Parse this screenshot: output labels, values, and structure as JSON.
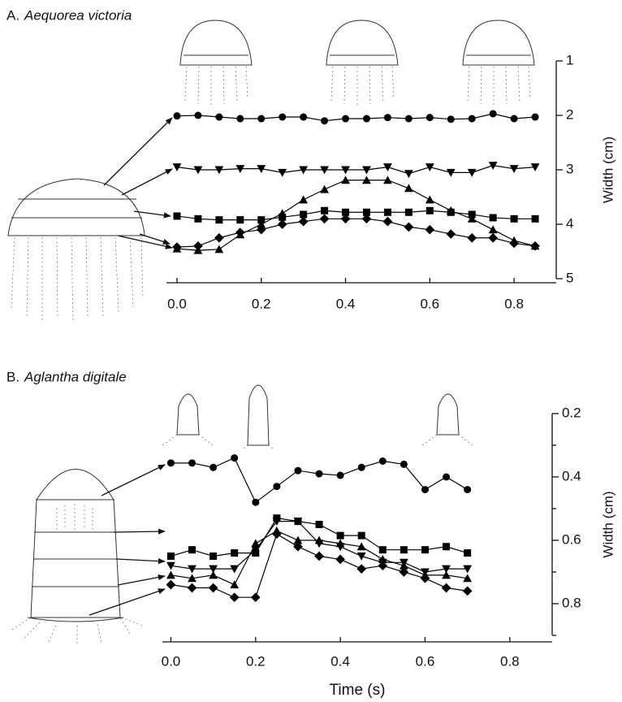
{
  "chart_data": [
    {
      "type": "line",
      "label": "A.",
      "title": "Aequorea victoria",
      "ylabel": "Width (cm)",
      "x": [
        0,
        0.05,
        0.1,
        0.15,
        0.2,
        0.25,
        0.3,
        0.35,
        0.4,
        0.45,
        0.5,
        0.55,
        0.6,
        0.65,
        0.7,
        0.75,
        0.8,
        0.85
      ],
      "xlim": [
        -0.025,
        0.9
      ],
      "xticks": [
        {
          "value": 0,
          "label": "0.0"
        },
        0.2,
        0.4,
        0.6,
        0.8
      ],
      "ylim": [
        1,
        5
      ],
      "yticks": [
        1,
        2,
        3,
        4,
        5
      ],
      "y_inverted": true,
      "series": [
        {
          "marker": "circle",
          "color": "#000000",
          "values": [
            2.01,
            2.0,
            2.03,
            2.06,
            2.06,
            2.03,
            2.03,
            2.1,
            2.06,
            2.06,
            2.04,
            2.06,
            2.04,
            2.07,
            2.06,
            1.97,
            2.06,
            2.03
          ]
        },
        {
          "marker": "triangle-down",
          "color": "#000000",
          "values": [
            2.95,
            3.0,
            3.0,
            2.98,
            2.98,
            3.05,
            3.0,
            3.0,
            3.0,
            3.0,
            2.95,
            3.07,
            2.95,
            3.05,
            3.05,
            2.92,
            2.98,
            2.95
          ]
        },
        {
          "marker": "square",
          "color": "#000000",
          "values": [
            3.85,
            3.9,
            3.92,
            3.92,
            3.92,
            3.87,
            3.82,
            3.75,
            3.78,
            3.78,
            3.78,
            3.78,
            3.75,
            3.78,
            3.82,
            3.88,
            3.9,
            3.9
          ]
        },
        {
          "marker": "triangle-up",
          "color": "#000000",
          "values": [
            4.45,
            4.48,
            4.46,
            4.19,
            4.0,
            3.8,
            3.55,
            3.36,
            3.19,
            3.19,
            3.19,
            3.34,
            3.55,
            3.75,
            3.9,
            4.1,
            4.3,
            4.4
          ]
        },
        {
          "marker": "diamond",
          "color": "#000000",
          "values": [
            4.42,
            4.4,
            4.25,
            4.15,
            4.1,
            4.0,
            3.95,
            3.9,
            3.9,
            3.9,
            3.95,
            4.05,
            4.1,
            4.18,
            4.25,
            4.25,
            4.35,
            4.4
          ]
        }
      ]
    },
    {
      "type": "line",
      "label": "B.",
      "title": "Aglantha digitale",
      "ylabel": "Width (cm)",
      "xlabel": "Time (s)",
      "x": [
        0,
        0.05,
        0.1,
        0.15,
        0.2,
        0.25,
        0.3,
        0.35,
        0.4,
        0.45,
        0.5,
        0.55,
        0.6,
        0.65,
        0.7
      ],
      "xlim": [
        -0.02,
        0.9
      ],
      "xticks": [
        {
          "value": 0,
          "label": "0.0"
        },
        0.2,
        0.4,
        0.6,
        0.8
      ],
      "ylim": [
        0.2,
        0.9
      ],
      "yticks": [
        0.2,
        0.4,
        0.6,
        0.8
      ],
      "yminorticks": [
        0.3,
        0.5,
        0.7,
        0.9
      ],
      "y_inverted": true,
      "series": [
        {
          "marker": "circle",
          "color": "#000000",
          "values": [
            0.356,
            0.356,
            0.37,
            0.34,
            0.48,
            0.43,
            0.38,
            0.39,
            0.395,
            0.37,
            0.35,
            0.36,
            0.44,
            0.4,
            0.44
          ]
        },
        {
          "marker": "square",
          "color": "#000000",
          "values": [
            0.65,
            0.63,
            0.65,
            0.64,
            0.64,
            0.53,
            0.54,
            0.55,
            0.585,
            0.585,
            0.63,
            0.63,
            0.63,
            0.62,
            0.64
          ]
        },
        {
          "marker": "triangle-down",
          "color": "#000000",
          "values": [
            0.68,
            0.69,
            0.69,
            0.69,
            0.63,
            0.54,
            0.54,
            0.61,
            0.62,
            0.65,
            0.67,
            0.67,
            0.7,
            0.69,
            0.69
          ]
        },
        {
          "marker": "triangle-up",
          "color": "#000000",
          "values": [
            0.71,
            0.72,
            0.71,
            0.74,
            0.61,
            0.57,
            0.6,
            0.6,
            0.61,
            0.62,
            0.66,
            0.68,
            0.71,
            0.71,
            0.72
          ]
        },
        {
          "marker": "diamond",
          "color": "#000000",
          "values": [
            0.74,
            0.75,
            0.75,
            0.78,
            0.78,
            0.58,
            0.62,
            0.65,
            0.66,
            0.69,
            0.68,
            0.7,
            0.72,
            0.75,
            0.76
          ]
        }
      ]
    }
  ]
}
